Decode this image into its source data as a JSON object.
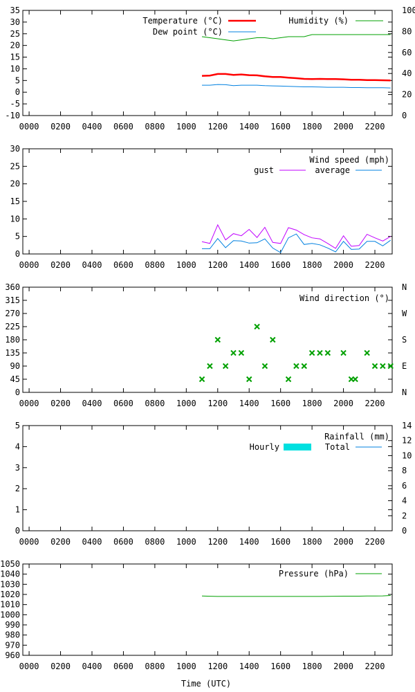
{
  "xlabel": "Time (UTC)",
  "time_ticks": [
    "0000",
    "0200",
    "0400",
    "0600",
    "0800",
    "1000",
    "1200",
    "1400",
    "1600",
    "1800",
    "2000",
    "2200"
  ],
  "colors": {
    "red": "#ff0000",
    "green": "#00a000",
    "blue": "#0080e0",
    "magenta": "#c000ff",
    "cyan": "#00e0e0"
  },
  "chart_data": [
    {
      "id": "temperature",
      "type": "line",
      "ylim": [
        -10,
        35
      ],
      "yticks": [
        "-10",
        "-5",
        "0",
        "5",
        "10",
        "15",
        "20",
        "25",
        "30",
        "35"
      ],
      "y2lim": [
        0,
        100
      ],
      "y2ticks": [
        "0",
        "20",
        "40",
        "60",
        "80",
        "100"
      ],
      "x": [
        11.0,
        11.5,
        12.0,
        12.5,
        13.0,
        13.5,
        14.0,
        14.5,
        15.0,
        15.5,
        16.0,
        16.5,
        17.0,
        17.5,
        18.0,
        18.5,
        19.0,
        19.5,
        20.0,
        20.5,
        21.0,
        21.5,
        22.0,
        22.5,
        23.0
      ],
      "series": [
        {
          "name": "Temperature (°C)",
          "color": "red",
          "axis": "y",
          "width": 2.5,
          "values": [
            7.0,
            7.1,
            7.8,
            7.8,
            7.4,
            7.6,
            7.3,
            7.2,
            6.8,
            6.5,
            6.5,
            6.2,
            6.0,
            5.7,
            5.6,
            5.7,
            5.6,
            5.6,
            5.5,
            5.3,
            5.3,
            5.2,
            5.2,
            5.1,
            5.0
          ]
        },
        {
          "name": "Dew point (°C)",
          "color": "blue",
          "axis": "y",
          "width": 1,
          "values": [
            3.0,
            3.0,
            3.3,
            3.2,
            2.8,
            3.0,
            3.0,
            3.0,
            2.8,
            2.7,
            2.6,
            2.5,
            2.4,
            2.3,
            2.3,
            2.2,
            2.1,
            2.1,
            2.1,
            2.0,
            2.0,
            1.9,
            1.9,
            1.9,
            1.8
          ]
        },
        {
          "name": "Humidity (%)",
          "color": "green",
          "axis": "y2",
          "width": 1,
          "values": [
            75,
            74,
            73,
            72,
            71,
            72,
            73,
            74,
            74,
            73,
            74,
            75,
            75,
            75,
            77,
            77,
            77,
            77,
            77,
            77,
            77,
            77,
            77,
            77,
            77
          ]
        }
      ],
      "legend": [
        {
          "label": "Temperature (°C)",
          "color": "red",
          "width": 2.5,
          "col": "left",
          "row": 0
        },
        {
          "label": "Dew point (°C)",
          "color": "blue",
          "width": 1,
          "col": "left",
          "row": 1
        },
        {
          "label": "Humidity (%)",
          "color": "green",
          "width": 1,
          "col": "right",
          "row": 0
        }
      ]
    },
    {
      "id": "wind-speed",
      "type": "line",
      "title": "Wind speed (mph)",
      "ylim": [
        0,
        30
      ],
      "yticks": [
        "0",
        "5",
        "10",
        "15",
        "20",
        "25",
        "30"
      ],
      "x": [
        11.0,
        11.5,
        12.0,
        12.5,
        13.0,
        13.5,
        14.0,
        14.5,
        15.0,
        15.5,
        16.0,
        16.5,
        17.0,
        17.5,
        18.0,
        18.5,
        19.0,
        19.5,
        20.0,
        20.5,
        21.0,
        21.5,
        22.0,
        22.5,
        23.0
      ],
      "series": [
        {
          "name": "gust",
          "color": "magenta",
          "values": [
            3.5,
            3.0,
            8.3,
            4.0,
            5.8,
            5.2,
            7.0,
            4.7,
            7.6,
            3.3,
            3.0,
            7.5,
            6.8,
            5.5,
            4.6,
            4.3,
            3.0,
            1.6,
            5.2,
            2.2,
            2.4,
            5.6,
            4.6,
            3.7,
            5.0
          ]
        },
        {
          "name": "average",
          "color": "blue",
          "values": [
            1.5,
            1.5,
            4.4,
            1.8,
            3.8,
            3.7,
            3.1,
            3.2,
            4.3,
            1.7,
            0.4,
            4.6,
            5.7,
            2.7,
            3.0,
            2.6,
            1.7,
            0.6,
            3.6,
            1.3,
            1.4,
            3.6,
            3.6,
            2.3,
            3.9
          ]
        }
      ],
      "legend": [
        {
          "label": "gust",
          "color": "magenta"
        },
        {
          "label": "average",
          "color": "blue"
        }
      ]
    },
    {
      "id": "wind-direction",
      "type": "scatter",
      "title": "Wind direction (°)",
      "ylim": [
        0,
        360
      ],
      "yticks": [
        "0",
        "45",
        "90",
        "135",
        "180",
        "225",
        "270",
        "315",
        "360"
      ],
      "y2ticks": [
        "N",
        "E",
        "S",
        "W",
        "N"
      ],
      "color": "green",
      "points": [
        [
          11.0,
          45
        ],
        [
          11.5,
          90
        ],
        [
          12.0,
          180
        ],
        [
          12.5,
          90
        ],
        [
          13.0,
          135
        ],
        [
          13.5,
          135
        ],
        [
          14.0,
          45
        ],
        [
          14.5,
          225
        ],
        [
          15.0,
          90
        ],
        [
          15.5,
          180
        ],
        [
          16.5,
          45
        ],
        [
          17.0,
          90
        ],
        [
          17.5,
          90
        ],
        [
          18.0,
          135
        ],
        [
          18.5,
          135
        ],
        [
          19.0,
          135
        ],
        [
          20.0,
          135
        ],
        [
          20.5,
          45
        ],
        [
          20.75,
          45
        ],
        [
          21.5,
          135
        ],
        [
          22.0,
          90
        ],
        [
          22.5,
          90
        ],
        [
          23.0,
          90
        ]
      ]
    },
    {
      "id": "rainfall",
      "type": "bar",
      "title": "Rainfall (mm)",
      "ylim": [
        0,
        5
      ],
      "yticks": [
        "0",
        "1",
        "2",
        "3",
        "4",
        "5"
      ],
      "y2lim": [
        0,
        14
      ],
      "y2ticks": [
        "0",
        "2",
        "4",
        "6",
        "8",
        "10",
        "12",
        "14"
      ],
      "series": [
        {
          "name": "Hourly",
          "color": "cyan",
          "values": []
        },
        {
          "name": "Total",
          "color": "blue",
          "values": []
        }
      ]
    },
    {
      "id": "pressure",
      "type": "line",
      "ylim": [
        960,
        1050
      ],
      "yticks": [
        "960",
        "970",
        "980",
        "990",
        "1000",
        "1010",
        "1020",
        "1030",
        "1040",
        "1050"
      ],
      "x": [
        11.0,
        11.5,
        12.0,
        12.5,
        13.0,
        13.5,
        14.0,
        14.5,
        15.0,
        15.5,
        16.0,
        16.5,
        17.0,
        17.5,
        18.0,
        18.5,
        19.0,
        19.5,
        20.0,
        20.5,
        21.0,
        21.5,
        22.0,
        22.5,
        23.0
      ],
      "series": [
        {
          "name": "Pressure (hPa)",
          "color": "green",
          "values": [
            1018.5,
            1018.2,
            1018.0,
            1018.0,
            1018.0,
            1018.0,
            1018.0,
            1018.0,
            1018.0,
            1018.0,
            1018.0,
            1018.0,
            1018.0,
            1018.0,
            1018.0,
            1018.0,
            1018.1,
            1018.2,
            1018.3,
            1018.3,
            1018.3,
            1018.4,
            1018.5,
            1018.6,
            1019.0
          ]
        }
      ]
    }
  ]
}
